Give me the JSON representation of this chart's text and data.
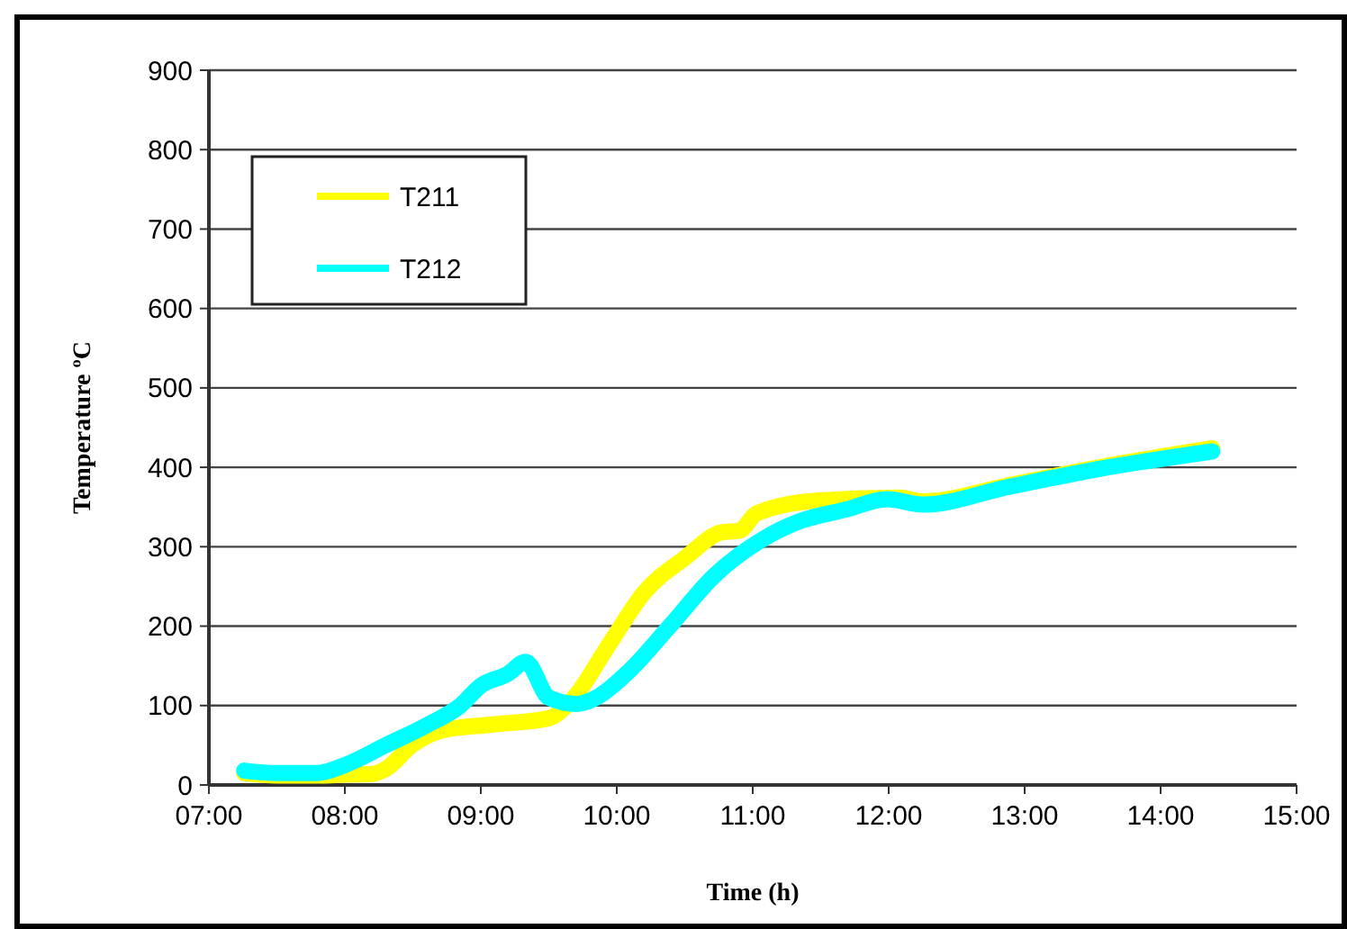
{
  "chart_data": {
    "type": "line",
    "xlabel": "Time (h)",
    "ylabel": "Temperature ºC",
    "xlim": [
      7,
      15
    ],
    "xticks": [
      {
        "value": 7,
        "label": "07:00"
      },
      {
        "value": 8,
        "label": "08:00"
      },
      {
        "value": 9,
        "label": "09:00"
      },
      {
        "value": 10,
        "label": "10:00"
      },
      {
        "value": 11,
        "label": "11:00"
      },
      {
        "value": 12,
        "label": "12:00"
      },
      {
        "value": 13,
        "label": "13:00"
      },
      {
        "value": 14,
        "label": "14:00"
      },
      {
        "value": 15,
        "label": "15:00"
      }
    ],
    "ylim": [
      0,
      900
    ],
    "yticks": [
      0,
      100,
      200,
      300,
      400,
      500,
      600,
      700,
      800,
      900
    ],
    "grid": "y",
    "legend": "top left",
    "line_style": "solid",
    "series": [
      {
        "name": "T211",
        "color": "#ffff00",
        "x": [
          7.26,
          7.5,
          7.8,
          8.0,
          8.2,
          8.3,
          8.5,
          8.72,
          9.08,
          9.5,
          9.68,
          9.94,
          10.2,
          10.51,
          10.77,
          10.9,
          11.03,
          11.46,
          12.08,
          12.25,
          12.9,
          13.55,
          14.38
        ],
        "values": [
          15,
          12,
          12,
          13,
          14,
          20,
          51,
          69,
          76,
          84,
          109,
          176,
          242,
          287,
          318,
          320,
          342,
          358,
          362,
          357,
          378,
          400,
          424
        ]
      },
      {
        "name": "T212",
        "color": "#00ffff",
        "x": [
          7.26,
          7.5,
          7.8,
          8.0,
          8.3,
          8.6,
          8.85,
          9.0,
          9.2,
          9.33,
          9.5,
          9.7,
          9.85,
          10.07,
          10.38,
          10.72,
          11.07,
          11.33,
          11.69,
          11.99,
          12.25,
          12.9,
          13.55,
          14.38
        ],
        "values": [
          18,
          15,
          15,
          25,
          50,
          75,
          100,
          125,
          140,
          155,
          110,
          102,
          110,
          140,
          198,
          264,
          309,
          331,
          347,
          360,
          353,
          376,
          398,
          420
        ]
      }
    ]
  }
}
